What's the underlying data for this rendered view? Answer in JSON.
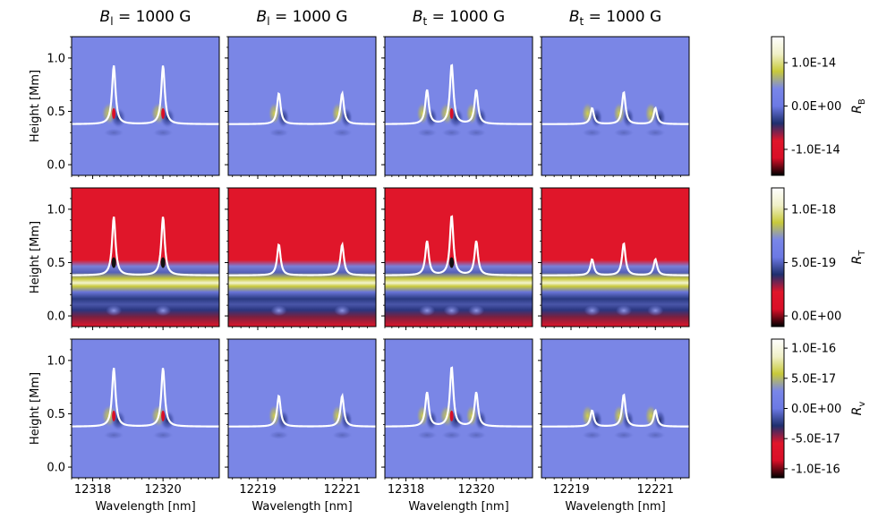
{
  "chart_data": {
    "type": "heatmap",
    "column_titles": [
      {
        "sym": "B",
        "sub": "l",
        "rest": " = 1000 G"
      },
      {
        "sym": "B",
        "sub": "l",
        "rest": " = 1000 G"
      },
      {
        "sym": "B",
        "sub": "t",
        "rest": " = 1000 G"
      },
      {
        "sym": "B",
        "sub": "t",
        "rest": " = 1000 G"
      }
    ],
    "ylabel": "Height [Mm]",
    "xlabel": "Wavelength [nm]",
    "ylim": [
      -0.1,
      1.2
    ],
    "yticks": [
      "0.0",
      "0.5",
      "1.0"
    ],
    "yticks_values": [
      0.0,
      0.5,
      1.0
    ],
    "columns": [
      {
        "xlim": [
          12317.4,
          12321.6
        ],
        "xticks": [
          12318,
          12320
        ],
        "xticklabels": [
          "12318",
          "12320"
        ],
        "lines": [
          12318.6,
          12320.0
        ],
        "peaks": [
          0.93,
          0.93
        ]
      },
      {
        "xlim": [
          12218.3,
          12221.8
        ],
        "xticks": [
          12219,
          12221
        ],
        "xticklabels": [
          "12219",
          "12221"
        ],
        "lines": [
          12219.5,
          12221.0
        ],
        "peaks": [
          0.67,
          0.67
        ]
      },
      {
        "xlim": [
          12317.4,
          12321.6
        ],
        "xticks": [
          12318,
          12320
        ],
        "xticklabels": [
          "12318",
          "12320"
        ],
        "lines": [
          12318.6,
          12319.3,
          12320.0
        ],
        "peaks": [
          0.7,
          0.94,
          0.7
        ]
      },
      {
        "xlim": [
          12218.3,
          12221.8
        ],
        "xticks": [
          12219,
          12221
        ],
        "xticklabels": [
          "12219",
          "12221"
        ],
        "lines": [
          12219.5,
          12220.25,
          12221.0
        ],
        "peaks": [
          0.53,
          0.68,
          0.53
        ]
      }
    ],
    "profile_baseline": 0.38,
    "rows": [
      {
        "name": "R_B",
        "colorbar_label": {
          "sym": "R",
          "sub": "B"
        },
        "colorbar_ticks": [
          "1.0E-14",
          "0.0E+00",
          "-1.0E-14"
        ],
        "colorbar_tick_values": [
          1e-14,
          0.0,
          -1e-14
        ],
        "colorbar_range": [
          -1.6e-14,
          1.6e-14
        ]
      },
      {
        "name": "R_T",
        "colorbar_label": {
          "sym": "R",
          "sub": "T"
        },
        "colorbar_ticks": [
          "1.0E-18",
          "5.0E-19",
          "0.0E+00"
        ],
        "colorbar_tick_values": [
          1e-18,
          5e-19,
          0.0
        ],
        "colorbar_range": [
          -1e-19,
          1.2e-18
        ]
      },
      {
        "name": "R_v",
        "colorbar_label": {
          "sym": "R",
          "sub": "v"
        },
        "colorbar_ticks": [
          "1.0E-16",
          "5.0E-17",
          "0.0E+00",
          "-5.0E-17",
          "-1.0E-16"
        ],
        "colorbar_tick_values": [
          1e-16,
          5e-17,
          0.0,
          -5e-17,
          -1e-16
        ],
        "colorbar_range": [
          -1.15e-16,
          1.15e-16
        ]
      }
    ],
    "colormap": [
      "#000000",
      "#d90f28",
      "#e0162a",
      "#1f2f6d",
      "#6c79e4",
      "#7986e8",
      "#c8c93a",
      "#f0f0c8",
      "#ffffff"
    ],
    "colors": {
      "background_base": "#7a86e6",
      "saturated_red": "#e0162a",
      "profile": "#ffffff"
    }
  }
}
